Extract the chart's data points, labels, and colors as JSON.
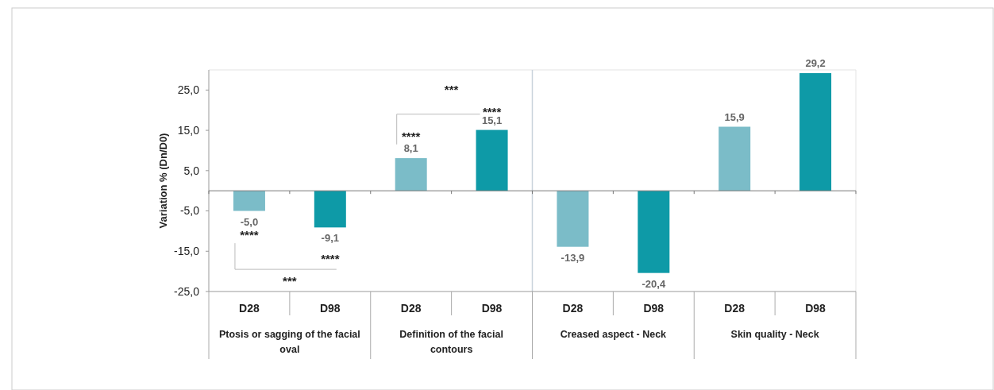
{
  "chart_data": {
    "type": "bar",
    "ylabel": "Variation % (Dn/D0)",
    "categories": [
      "D28",
      "D98",
      "D28",
      "D98",
      "D28",
      "D98",
      "D28",
      "D98"
    ],
    "values": [
      -5.0,
      -9.1,
      8.1,
      15.1,
      -13.9,
      -20.4,
      15.9,
      29.2
    ],
    "colors": [
      "#7bbcc8",
      "#0e9aa7",
      "#7bbcc8",
      "#0e9aa7",
      "#7bbcc8",
      "#0e9aa7",
      "#7bbcc8",
      "#0e9aa7"
    ],
    "value_labels": [
      "-5,0",
      "-9,1",
      "8,1",
      "15,1",
      "-13,9",
      "-20,4",
      "15,9",
      "29,2"
    ],
    "ylim": [
      -25,
      30
    ],
    "yticks": [
      {
        "value": -25,
        "label": "-25,0"
      },
      {
        "value": -15,
        "label": "-15,0"
      },
      {
        "value": -5,
        "label": "-5,0"
      },
      {
        "value": 5,
        "label": "5,0"
      },
      {
        "value": 15,
        "label": "15,0"
      },
      {
        "value": 25,
        "label": "25,0"
      }
    ],
    "grid": false,
    "annotations": [
      "Ptosis or sagging of the facial oval",
      "Definition of the facial contours",
      "Creased aspect - Neck",
      "Skin quality - Neck",
      "****",
      "****",
      "***",
      "****",
      "****",
      "***"
    ]
  }
}
